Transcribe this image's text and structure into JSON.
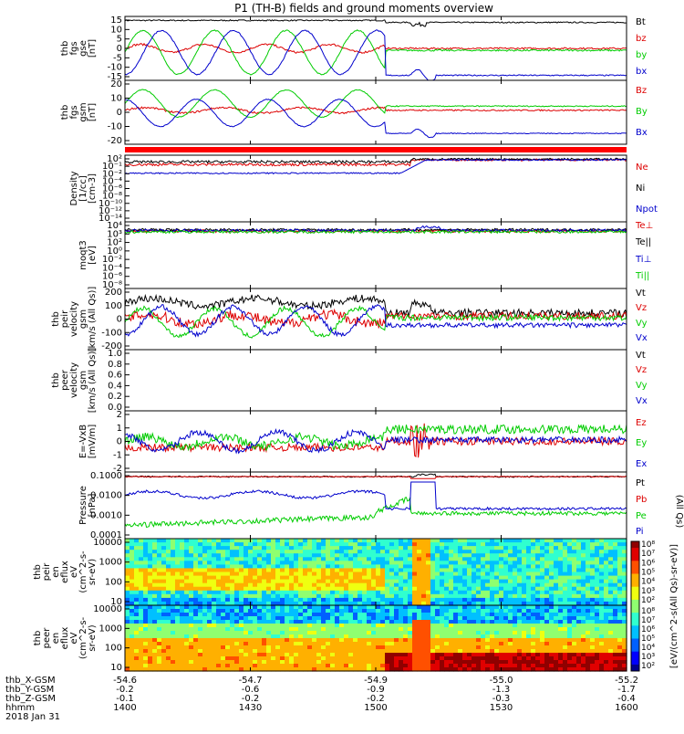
{
  "title": "P1 (TH-B) fields and ground moments overview",
  "colors": {
    "black": "#000000",
    "red": "#dd0000",
    "green": "#00cc00",
    "blue": "#0000cc",
    "white": "#ffffff"
  },
  "chart_data": [
    {
      "type": "line",
      "panel": "fgs_gse",
      "ylabel": [
        "thb",
        "fgs",
        "gse",
        "[nT]"
      ],
      "ylim": [
        -15,
        16
      ],
      "yticks": [
        "15",
        "10",
        "5",
        "0",
        "-5",
        "-10",
        "-15"
      ],
      "series": [
        {
          "name": "Bt",
          "color": "black"
        },
        {
          "name": "bz",
          "color": "red"
        },
        {
          "name": "by",
          "color": "green"
        },
        {
          "name": "bx",
          "color": "blue"
        }
      ]
    },
    {
      "type": "line",
      "panel": "fgs_gsm",
      "ylabel": [
        "thb",
        "fgs",
        "gsm",
        "[nT]"
      ],
      "ylim": [
        -25,
        20
      ],
      "yticks": [
        "20",
        "10",
        "0",
        "-10",
        "-20"
      ],
      "series": [
        {
          "name": "Bz",
          "color": "red"
        },
        {
          "name": "By",
          "color": "green"
        },
        {
          "name": "Bx",
          "color": "blue"
        }
      ]
    },
    {
      "type": "line",
      "panel": "density",
      "ylabel": [
        "Density",
        "[1/cc]",
        "[cm-3]"
      ],
      "yticks": [
        "10²",
        "10⁻¹",
        "10⁻²",
        "10⁻⁴",
        "10⁻⁶",
        "10⁻⁸",
        "10⁻¹⁰",
        "10⁻¹²",
        "10⁻¹⁴"
      ],
      "series": [
        {
          "name": "Ne",
          "color": "red"
        },
        {
          "name": "Ni",
          "color": "black"
        },
        {
          "name": "Npot",
          "color": "blue"
        }
      ]
    },
    {
      "type": "line",
      "panel": "temperature",
      "ylabel": [
        "moqt3",
        "[eV]"
      ],
      "yticks": [
        "10⁴",
        "10³",
        "10²",
        "10⁰",
        "10⁻²",
        "10⁻⁴",
        "10⁻⁶",
        "10⁻⁸"
      ],
      "series": [
        {
          "name": "Te⊥",
          "color": "red"
        },
        {
          "name": "Te||",
          "color": "black"
        },
        {
          "name": "Ti⊥",
          "color": "blue"
        },
        {
          "name": "Ti||",
          "color": "green"
        }
      ]
    },
    {
      "type": "line",
      "panel": "peir_velocity",
      "ylabel": [
        "thb",
        "peir",
        "velocity",
        "gsm",
        "[km/s (All Qs)]"
      ],
      "ylim": [
        -200,
        200
      ],
      "yticks": [
        "200",
        "100",
        "0",
        "-100",
        "-200"
      ],
      "series": [
        {
          "name": "Vt",
          "color": "black"
        },
        {
          "name": "Vz",
          "color": "red"
        },
        {
          "name": "Vy",
          "color": "green"
        },
        {
          "name": "Vx",
          "color": "blue"
        }
      ]
    },
    {
      "type": "line",
      "panel": "peer_velocity",
      "ylabel": [
        "thb",
        "peer",
        "velocity",
        "gsm",
        "[km/s (All Qs)]"
      ],
      "ylim": [
        0,
        1
      ],
      "yticks": [
        "1.0",
        "0.8",
        "0.6",
        "0.4",
        "0.2",
        "0.0"
      ],
      "series": [
        {
          "name": "Vt",
          "color": "black"
        },
        {
          "name": "Vz",
          "color": "red"
        },
        {
          "name": "Vy",
          "color": "green"
        },
        {
          "name": "Vx",
          "color": "blue"
        }
      ]
    },
    {
      "type": "line",
      "panel": "efield",
      "ylabel": [
        "E=-VxB",
        "[mV/m]"
      ],
      "ylim": [
        -2,
        2
      ],
      "yticks": [
        "2",
        "1",
        "0",
        "-1",
        "-2"
      ],
      "series": [
        {
          "name": "Ez",
          "color": "red"
        },
        {
          "name": "Ey",
          "color": "green"
        },
        {
          "name": "Ex",
          "color": "blue"
        }
      ]
    },
    {
      "type": "line",
      "panel": "pressure",
      "ylabel": [
        "Pressure",
        "[nPa]"
      ],
      "yticks": [
        "0.1000",
        "0.0100",
        "0.0010",
        "0.0001"
      ],
      "series": [
        {
          "name": "Pt",
          "color": "black"
        },
        {
          "name": "Pb",
          "color": "red"
        },
        {
          "name": "Pe",
          "color": "green"
        },
        {
          "name": "Pi",
          "color": "blue"
        }
      ],
      "side_label": "(All Qs)"
    },
    {
      "type": "heatmap",
      "panel": "peir_en_eflux",
      "ylabel": [
        "thb",
        "peir",
        "en",
        "eflux",
        "eV",
        "(cm^2-s-",
        "sr-eV)"
      ],
      "yticks": [
        "10000",
        "1000",
        "100",
        "10"
      ],
      "colorbar_ticks": [
        "10⁸",
        "10⁷",
        "10⁶",
        "10⁵",
        "10⁴",
        "10³",
        "10²"
      ]
    },
    {
      "type": "heatmap",
      "panel": "peer_en_eflux",
      "ylabel": [
        "thb",
        "peer",
        "en",
        "eflux",
        "eV",
        "(cm^2-s-",
        "sr-eV)"
      ],
      "yticks": [
        "10000",
        "1000",
        "100",
        "10"
      ],
      "colorbar_ticks": [
        "10⁸",
        "10⁷",
        "10⁶",
        "10⁵",
        "10⁴",
        "10³",
        "10²"
      ]
    }
  ],
  "colorbar_label": "[eV/(cm^2-s(All Qs)-sr-eV)]",
  "x_axis": {
    "rows": [
      {
        "label": "thb_X-GSM",
        "values": [
          "-54.6",
          "-54.7",
          "-54.9",
          "-55.0",
          "-55.2"
        ]
      },
      {
        "label": "thb_Y-GSM",
        "values": [
          "-0.2",
          "-0.6",
          "-0.9",
          "-1.3",
          "-1.7"
        ]
      },
      {
        "label": "thb_Z-GSM",
        "values": [
          "-0.1",
          "-0.2",
          "-0.2",
          "-0.3",
          "-0.4"
        ]
      },
      {
        "label": "hhmm",
        "values": [
          "1400",
          "1430",
          "1500",
          "1530",
          "1600"
        ]
      }
    ],
    "date": "2018 Jan 31"
  }
}
